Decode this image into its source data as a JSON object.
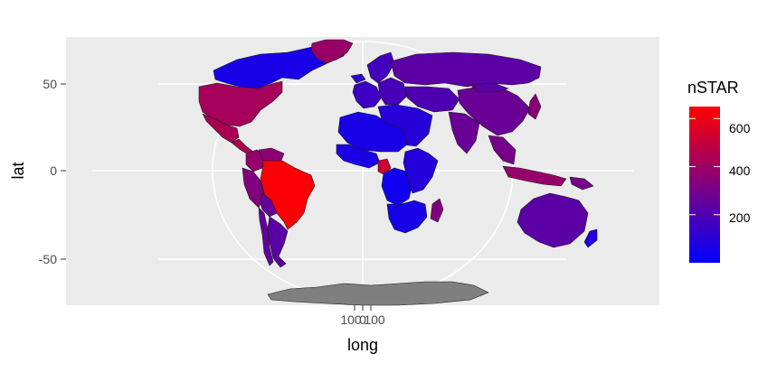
{
  "chart_data": {
    "type": "choropleth-map",
    "projection": "orthographic-style world map",
    "xlabel": "long",
    "ylabel": "lat",
    "y_ticks": [
      "50",
      "0",
      "-50"
    ],
    "y_tick_values": [
      50,
      0,
      -50
    ],
    "x_ticks": [
      "100",
      "0",
      "100"
    ],
    "x_tick_values": [
      -100,
      0,
      100
    ],
    "legend": {
      "title": "nSTAR",
      "labels": [
        "600",
        "400",
        "200"
      ],
      "label_values": [
        600,
        400,
        200
      ],
      "range": [
        0,
        650
      ],
      "color_low": "#0000ff",
      "color_high": "#ff0000"
    },
    "missing_color": "#7f7f7f",
    "regions": [
      {
        "name": "Canada",
        "value": 60
      },
      {
        "name": "Greenland",
        "value": 390
      },
      {
        "name": "United States",
        "value": 420
      },
      {
        "name": "Mexico",
        "value": 430
      },
      {
        "name": "Central America",
        "value": 440
      },
      {
        "name": "Colombia",
        "value": 380
      },
      {
        "name": "Venezuela",
        "value": 360
      },
      {
        "name": "Peru",
        "value": 330
      },
      {
        "name": "Brazil",
        "value": 640
      },
      {
        "name": "Bolivia",
        "value": 260
      },
      {
        "name": "Argentina",
        "value": 230
      },
      {
        "name": "Chile",
        "value": 250
      },
      {
        "name": "Iceland",
        "value": 120
      },
      {
        "name": "Scandinavia",
        "value": 170
      },
      {
        "name": "Western Europe",
        "value": 150
      },
      {
        "name": "Eastern Europe",
        "value": 180
      },
      {
        "name": "Russia",
        "value": 230
      },
      {
        "name": "Central Asia",
        "value": 200
      },
      {
        "name": "Middle East",
        "value": 100
      },
      {
        "name": "India",
        "value": 270
      },
      {
        "name": "China",
        "value": 270
      },
      {
        "name": "Mongolia",
        "value": 230
      },
      {
        "name": "Southeast Asia",
        "value": 300
      },
      {
        "name": "Japan",
        "value": 350
      },
      {
        "name": "Indonesia",
        "value": 380
      },
      {
        "name": "Papua New Guinea",
        "value": 300
      },
      {
        "name": "Australia",
        "value": 230
      },
      {
        "name": "New Zealand",
        "value": 80
      },
      {
        "name": "North Africa",
        "value": 60
      },
      {
        "name": "West Africa",
        "value": 70
      },
      {
        "name": "Cameroon",
        "value": 520
      },
      {
        "name": "Central Africa",
        "value": 40
      },
      {
        "name": "East Africa",
        "value": 90
      },
      {
        "name": "Southern Africa",
        "value": 60
      },
      {
        "name": "Madagascar",
        "value": 330
      },
      {
        "name": "Antarctica",
        "value": null
      }
    ],
    "grid": true
  }
}
